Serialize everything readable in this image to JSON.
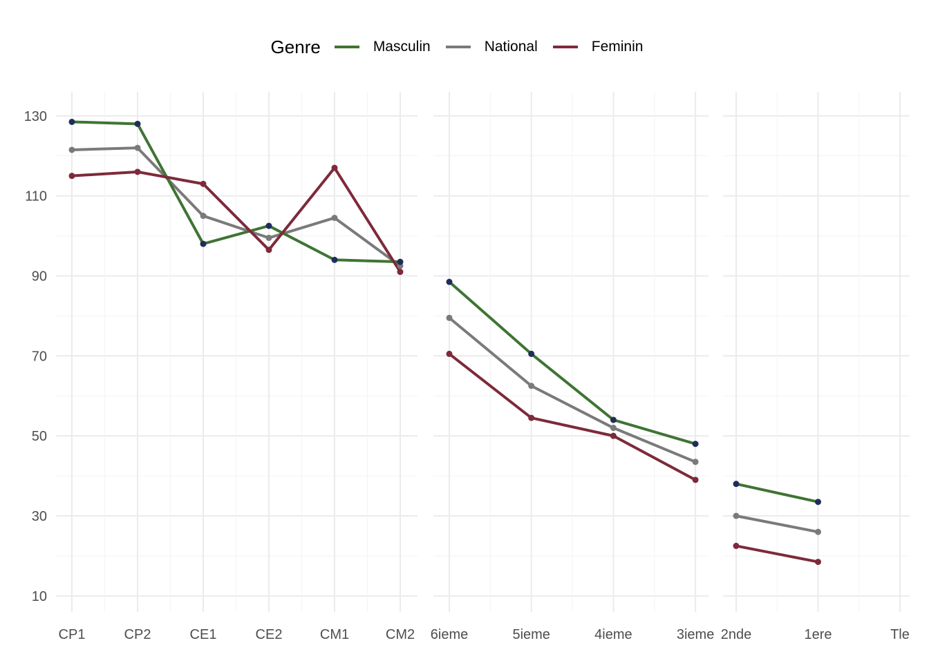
{
  "chart_data": {
    "type": "line",
    "legend": {
      "title": "Genre",
      "placement": "top",
      "entries": [
        {
          "name": "Masculin",
          "color": "#3f7433"
        },
        {
          "name": "National",
          "color": "#7a7a7a"
        },
        {
          "name": "Feminin",
          "color": "#7d2a3a"
        }
      ]
    },
    "ylim": [
      6,
      136
    ],
    "yticks": [
      10,
      30,
      50,
      70,
      90,
      110,
      130
    ],
    "grid": true,
    "point_color": "#1f2d5a",
    "panels": [
      {
        "categories": [
          "CP1",
          "CP2",
          "CE1",
          "CE2",
          "CM1",
          "CM2"
        ],
        "series": [
          {
            "name": "Masculin",
            "values": [
              128.5,
              128,
              98,
              102.5,
              94,
              93.5
            ]
          },
          {
            "name": "National",
            "values": [
              121.5,
              122,
              105,
              99.5,
              104.5,
              92.5
            ]
          },
          {
            "name": "Feminin",
            "values": [
              115,
              116,
              113,
              96.5,
              117,
              91
            ]
          }
        ]
      },
      {
        "categories": [
          "6ieme",
          "5ieme",
          "4ieme",
          "3ieme"
        ],
        "series": [
          {
            "name": "Masculin",
            "values": [
              88.5,
              70.5,
              54,
              48
            ]
          },
          {
            "name": "National",
            "values": [
              79.5,
              62.5,
              52,
              43.5
            ]
          },
          {
            "name": "Feminin",
            "values": [
              70.5,
              54.5,
              50,
              39
            ]
          }
        ]
      },
      {
        "categories": [
          "2nde",
          "1ere",
          "Tle"
        ],
        "series": [
          {
            "name": "Masculin",
            "values": [
              38,
              33.5,
              null
            ]
          },
          {
            "name": "National",
            "values": [
              30,
              26,
              null
            ]
          },
          {
            "name": "Feminin",
            "values": [
              22.5,
              18.5,
              null
            ]
          }
        ]
      }
    ]
  }
}
